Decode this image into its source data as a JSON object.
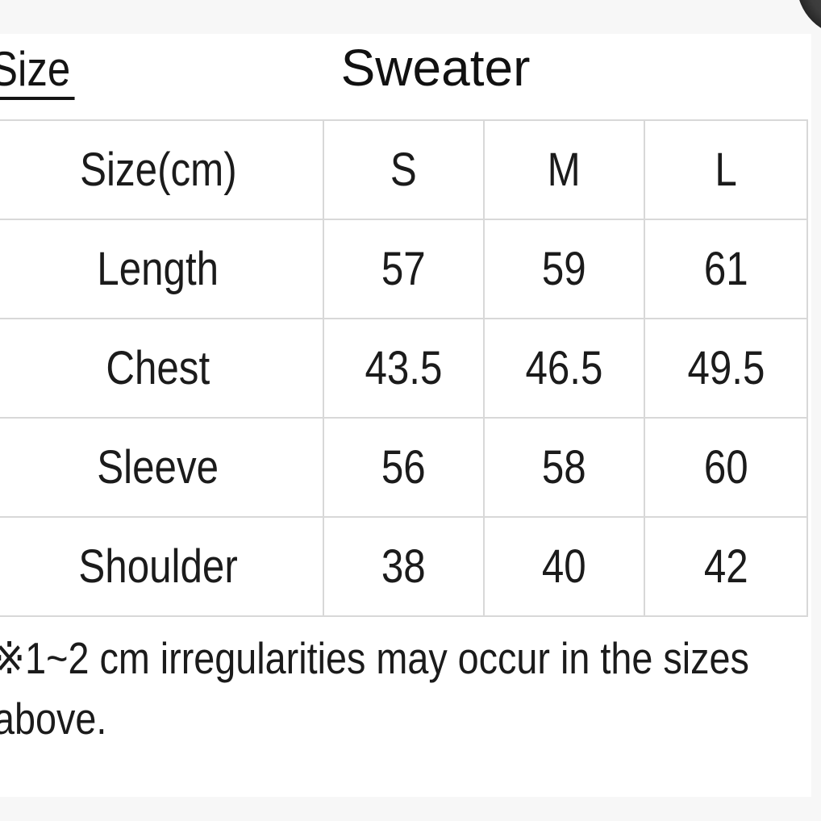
{
  "header": {
    "size_label": "Size",
    "product_title": "Sweater"
  },
  "size_chart": {
    "columns": [
      "Size(cm)",
      "S",
      "M",
      "L"
    ],
    "rows": [
      {
        "label": "Length",
        "values": [
          "57",
          "59",
          "61"
        ]
      },
      {
        "label": "Chest",
        "values": [
          "43.5",
          "46.5",
          "49.5"
        ]
      },
      {
        "label": "Sleeve",
        "values": [
          "56",
          "58",
          "60"
        ]
      },
      {
        "label": "Shoulder",
        "values": [
          "38",
          "40",
          "42"
        ]
      }
    ]
  },
  "note": {
    "lines": [
      "※1~2 cm irregularities may occur in the sizes",
      "above."
    ]
  },
  "colors": {
    "background": "#f7f7f7",
    "card": "#ffffff",
    "grid_line": "#d8d8d8",
    "text": "#141414"
  }
}
